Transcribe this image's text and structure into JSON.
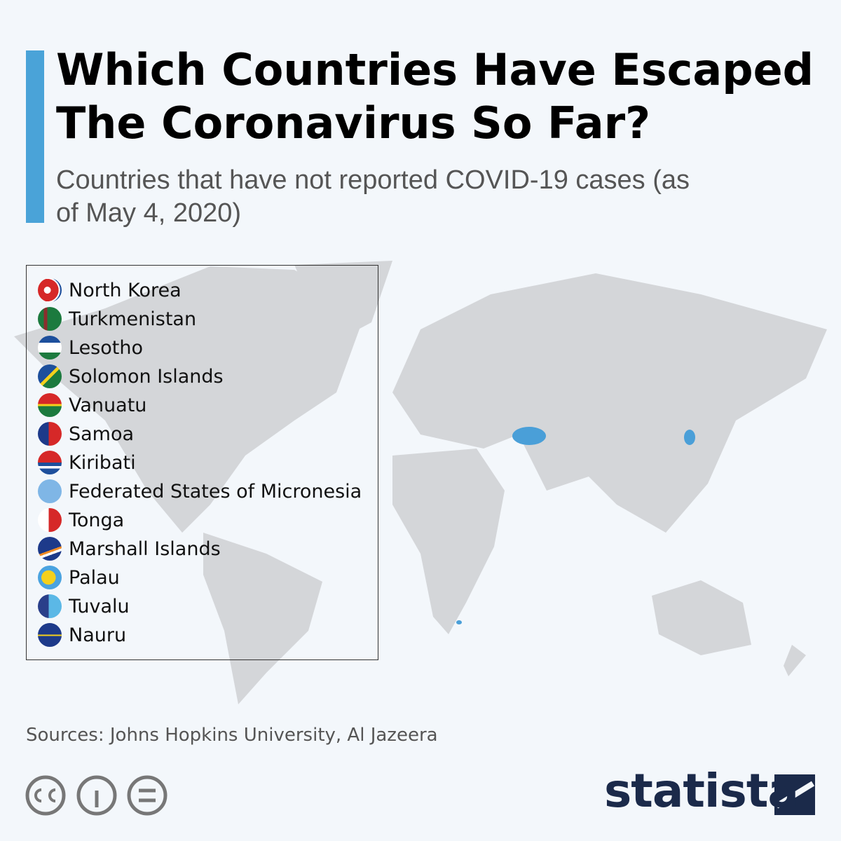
{
  "header": {
    "title": "Which Countries Have Escaped The Coronavirus So Far?",
    "subtitle": "Countries that have not reported COVID-19 cases (as of May 4, 2020)"
  },
  "legend": {
    "items": [
      "North Korea",
      "Turkmenistan",
      "Lesotho",
      "Solomon Islands",
      "Vanuatu",
      "Samoa",
      "Kiribati",
      "Federated States of Micronesia",
      "Tonga",
      "Marshall Islands",
      "Palau",
      "Tuvalu",
      "Nauru"
    ]
  },
  "footer": {
    "source": "Sources: Johns Hopkins University, Al Jazeera",
    "brand": "statista"
  }
}
